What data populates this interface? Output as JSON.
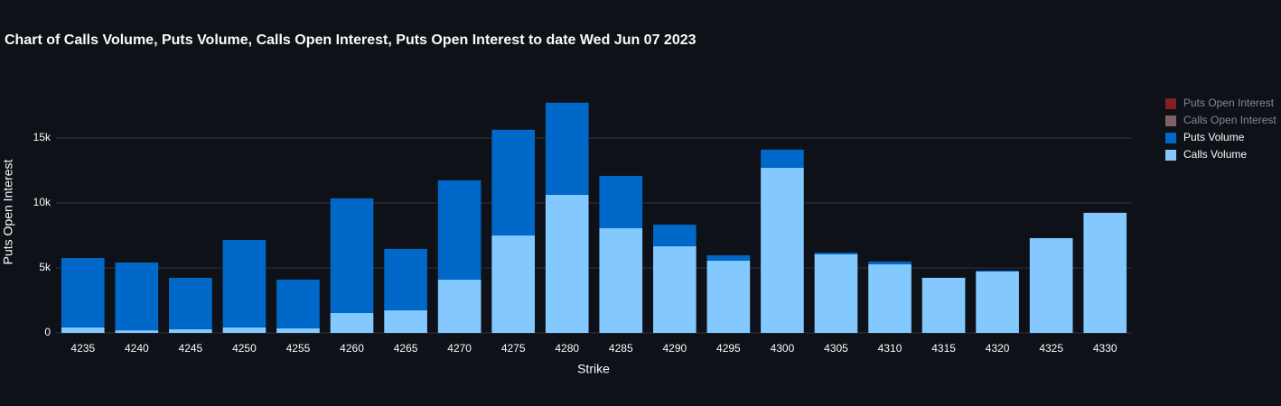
{
  "chart_data": {
    "type": "bar",
    "stacked": true,
    "title": "Chart of Calls Volume, Puts Volume, Calls Open Interest, Puts Open Interest to date Wed Jun 07 2023",
    "x_label": "Strike",
    "y_label": "Puts Open Interest",
    "categories": [
      "4235",
      "4240",
      "4245",
      "4250",
      "4255",
      "4260",
      "4265",
      "4270",
      "4275",
      "4280",
      "4285",
      "4290",
      "4295",
      "4300",
      "4305",
      "4310",
      "4315",
      "4320",
      "4325",
      "4330"
    ],
    "series": [
      {
        "name": "Puts Open Interest",
        "color": "#ff2d2d",
        "visible": "legendonly",
        "values": [
          null,
          null,
          null,
          null,
          null,
          null,
          null,
          null,
          null,
          null,
          null,
          null,
          null,
          null,
          null,
          null,
          null,
          null,
          null,
          null
        ]
      },
      {
        "name": "Calls Open Interest",
        "color": "#f4b0b0",
        "visible": "legendonly",
        "values": [
          null,
          null,
          null,
          null,
          null,
          null,
          null,
          null,
          null,
          null,
          null,
          null,
          null,
          null,
          null,
          null,
          null,
          null,
          null,
          null
        ]
      },
      {
        "name": "Puts Volume",
        "color": "#0068c9",
        "values": [
          5340,
          5220,
          3960,
          6730,
          3750,
          8820,
          4720,
          7640,
          8130,
          7080,
          4020,
          1660,
          410,
          1390,
          140,
          210,
          0,
          70,
          0,
          0
        ]
      },
      {
        "name": "Calls Volume",
        "color": "#83c9ff",
        "values": [
          420,
          200,
          280,
          420,
          350,
          1530,
          1740,
          4100,
          7500,
          10630,
          8060,
          6670,
          5560,
          12710,
          6040,
          5280,
          4240,
          4720,
          7290,
          9240
        ]
      }
    ],
    "ylim": [
      0,
      18600
    ],
    "yticks": [
      0,
      {
        "value": 5000,
        "label": "5k"
      },
      {
        "value": 10000,
        "label": "10k"
      },
      {
        "value": 15000,
        "label": "15k"
      }
    ],
    "grid": true,
    "legend": "right"
  }
}
